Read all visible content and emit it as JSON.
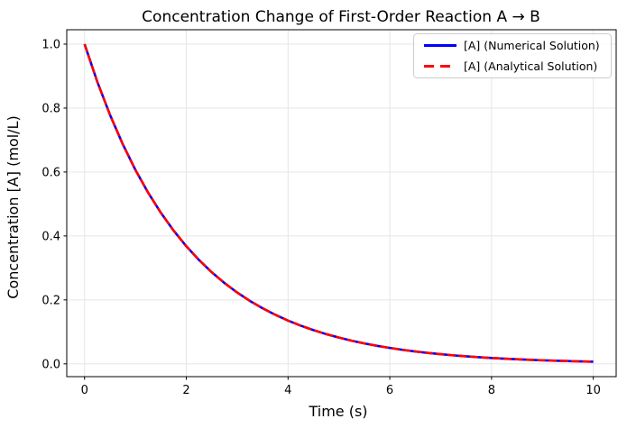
{
  "figure": {
    "background": "#ffffff",
    "spine_color": "#000000",
    "grid_color": "#e5e5e5",
    "legend_border_color": "#cccccc",
    "legend_background": "rgba(255,255,255,0.8)"
  },
  "chart_data": {
    "type": "line",
    "title": "Concentration Change of First-Order Reaction A → B",
    "xlabel": "Time (s)",
    "ylabel": "Concentration [A] (mol/L)",
    "xlim": [
      -0.35,
      10.45
    ],
    "ylim": [
      -0.04,
      1.045
    ],
    "xticks": [
      0,
      2,
      4,
      6,
      8,
      10
    ],
    "xticklabels": [
      "0",
      "2",
      "4",
      "6",
      "8",
      "10"
    ],
    "yticks": [
      0.0,
      0.2,
      0.4,
      0.6,
      0.8,
      1.0
    ],
    "yticklabels": [
      "0.0",
      "0.2",
      "0.4",
      "0.6",
      "0.8",
      "1.0"
    ],
    "grid": true,
    "legend_position": "upper right",
    "x": [
      0,
      0.25,
      0.5,
      0.75,
      1,
      1.25,
      1.5,
      1.75,
      2,
      2.25,
      2.5,
      2.75,
      3,
      3.25,
      3.5,
      3.75,
      4,
      4.25,
      4.5,
      4.75,
      5,
      5.25,
      5.5,
      5.75,
      6,
      6.25,
      6.5,
      6.75,
      7,
      7.25,
      7.5,
      7.75,
      8,
      8.25,
      8.5,
      8.75,
      9,
      9.25,
      9.5,
      9.75,
      10
    ],
    "series": [
      {
        "name": "[A] (Numerical Solution)",
        "color": "#0000ff",
        "line_style": "solid",
        "line_width": 2.6,
        "values": [
          1.0,
          0.8825,
          0.7788,
          0.6873,
          0.6065,
          0.5353,
          0.4724,
          0.4169,
          0.3679,
          0.3247,
          0.2865,
          0.2528,
          0.2231,
          0.1969,
          0.1738,
          0.1534,
          0.1353,
          0.1194,
          0.1054,
          0.093,
          0.0821,
          0.0724,
          0.0639,
          0.0564,
          0.0498,
          0.0439,
          0.0388,
          0.0342,
          0.0302,
          0.0266,
          0.0235,
          0.0208,
          0.0183,
          0.0162,
          0.0143,
          0.0126,
          0.0111,
          0.0098,
          0.0087,
          0.0076,
          0.0067
        ]
      },
      {
        "name": "[A] (Analytical Solution)",
        "color": "#ff0000",
        "line_style": "dashed",
        "line_width": 2.6,
        "values": [
          1.0,
          0.8825,
          0.7788,
          0.6873,
          0.6065,
          0.5353,
          0.4724,
          0.4169,
          0.3679,
          0.3247,
          0.2865,
          0.2528,
          0.2231,
          0.1969,
          0.1738,
          0.1534,
          0.1353,
          0.1194,
          0.1054,
          0.093,
          0.0821,
          0.0724,
          0.0639,
          0.0564,
          0.0498,
          0.0439,
          0.0388,
          0.0342,
          0.0302,
          0.0266,
          0.0235,
          0.0208,
          0.0183,
          0.0162,
          0.0143,
          0.0126,
          0.0111,
          0.0098,
          0.0087,
          0.0076,
          0.0067
        ]
      }
    ]
  }
}
